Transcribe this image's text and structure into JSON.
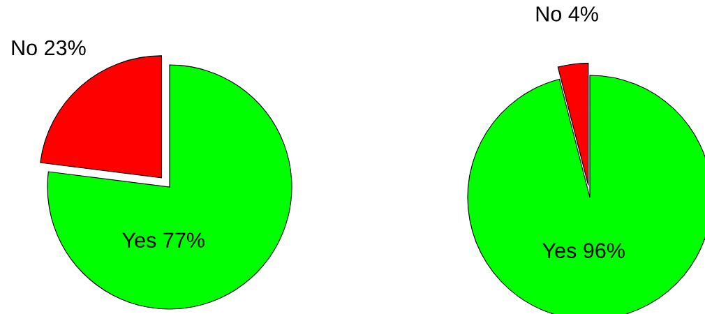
{
  "chart_data": [
    {
      "type": "pie",
      "categories": [
        "Yes",
        "No"
      ],
      "values": [
        77,
        23
      ],
      "value_labels": [
        "77%",
        "23%"
      ],
      "colors": [
        "#00ff00",
        "#ff0000"
      ]
    },
    {
      "type": "pie",
      "categories": [
        "Yes",
        "No"
      ],
      "values": [
        96,
        4
      ],
      "value_labels": [
        "96%",
        "4%"
      ],
      "colors": [
        "#00ff00",
        "#ff0000"
      ]
    }
  ]
}
